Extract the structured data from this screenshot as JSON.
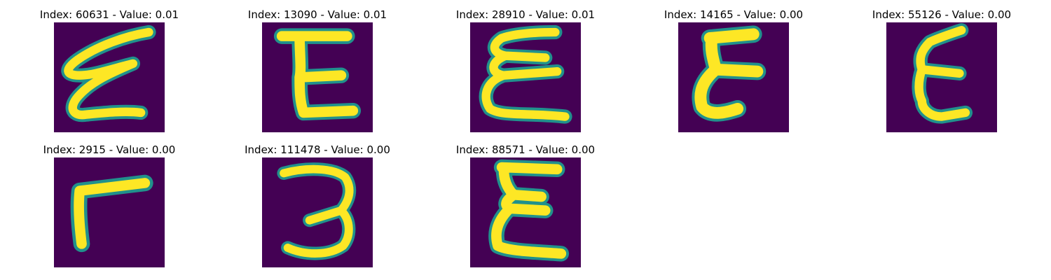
{
  "figure": {
    "background": "#ffffff",
    "colormap": "viridis",
    "colors": {
      "low": "#440154",
      "mid": "#21918c",
      "high": "#fde725"
    }
  },
  "panels": [
    {
      "index": "60631",
      "value": "0.01",
      "title": "Index: 60631 - Value: 0.01",
      "glyph": "handwritten-E"
    },
    {
      "index": "13090",
      "value": "0.01",
      "title": "Index: 13090 - Value: 0.01",
      "glyph": "handwritten-E"
    },
    {
      "index": "28910",
      "value": "0.01",
      "title": "Index: 28910 - Value: 0.01",
      "glyph": "handwritten-E"
    },
    {
      "index": "14165",
      "value": "0.00",
      "title": "Index: 14165 - Value: 0.00",
      "glyph": "handwritten-E"
    },
    {
      "index": "55126",
      "value": "0.00",
      "title": "Index: 55126 - Value: 0.00",
      "glyph": "handwritten-E"
    },
    {
      "index": "2915",
      "value": "0.00",
      "title": "Index: 2915 - Value: 0.00",
      "glyph": "handwritten-L-rotated"
    },
    {
      "index": "111478",
      "value": "0.00",
      "title": "Index: 111478 - Value: 0.00",
      "glyph": "handwritten-3"
    },
    {
      "index": "88571",
      "value": "0.00",
      "title": "Index: 88571 - Value: 0.00",
      "glyph": "handwritten-E"
    }
  ]
}
